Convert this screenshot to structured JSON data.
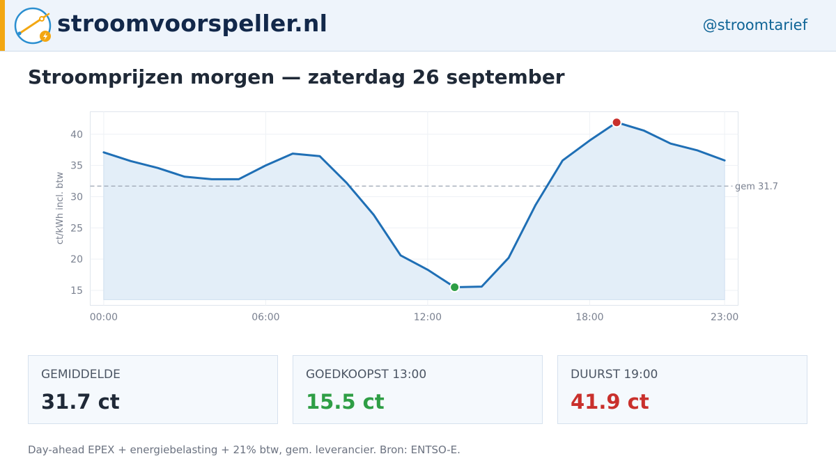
{
  "header": {
    "site_name": "stroomvoorspeller.nl",
    "handle": "@stroomtarief",
    "colors": {
      "accent": "#f3a712",
      "background": "#eef4fb",
      "logo_ring": "#2b8fd0",
      "logo_bolt": "#f3a712"
    },
    "logo_icon": "power-line-bolt-icon"
  },
  "page": {
    "title": "Stroomprijzen morgen — zaterdag 26 september"
  },
  "chart_data": {
    "type": "line",
    "title": "",
    "xlabel": "",
    "ylabel": "ct/kWh incl. btw",
    "x": [
      "00:00",
      "01:00",
      "02:00",
      "03:00",
      "04:00",
      "05:00",
      "06:00",
      "07:00",
      "08:00",
      "09:00",
      "10:00",
      "11:00",
      "12:00",
      "13:00",
      "14:00",
      "15:00",
      "16:00",
      "17:00",
      "18:00",
      "19:00",
      "20:00",
      "21:00",
      "22:00",
      "23:00"
    ],
    "x_ticks": [
      "00:00",
      "06:00",
      "12:00",
      "18:00",
      "23:00"
    ],
    "x_tick_hours": [
      0,
      6,
      12,
      18,
      23
    ],
    "y_ticks": [
      "15",
      "20",
      "25",
      "30",
      "35",
      "40"
    ],
    "y_tick_values": [
      15,
      20,
      25,
      30,
      35,
      40
    ],
    "xlim": [
      -0.5,
      23.5
    ],
    "ylim": [
      12.6,
      43.6
    ],
    "series": [
      {
        "values": [
          37.1,
          35.7,
          34.6,
          33.2,
          32.8,
          32.8,
          35.0,
          36.9,
          36.5,
          32.2,
          27.1,
          20.6,
          18.3,
          15.5,
          15.6,
          20.2,
          28.7,
          35.8,
          39.0,
          41.9,
          40.6,
          38.5,
          37.4,
          35.8
        ],
        "color": "#1f6fb5",
        "fill": "#e3eef8",
        "fill_baseline": 13.5
      }
    ],
    "average": {
      "value": 31.7,
      "label": "gem 31.7",
      "color": "#9aa4b1"
    },
    "min_marker": {
      "hour": 13,
      "value": 15.5,
      "color": "#2e9e45"
    },
    "max_marker": {
      "hour": 19,
      "value": 41.9,
      "color": "#c9302c"
    },
    "grid": true,
    "legend": "none"
  },
  "stats": [
    {
      "label": "GEMIDDELDE",
      "value": "31.7 ct",
      "color": "#1f2937"
    },
    {
      "label": "GOEDKOOPST 13:00",
      "value": "15.5 ct",
      "color": "#2e9e45"
    },
    {
      "label": "DUURST 19:00",
      "value": "41.9 ct",
      "color": "#c9302c"
    }
  ],
  "footnote": "Day-ahead EPEX + energiebelasting + 21% btw, gem. leverancier. Bron: ENTSO-E."
}
